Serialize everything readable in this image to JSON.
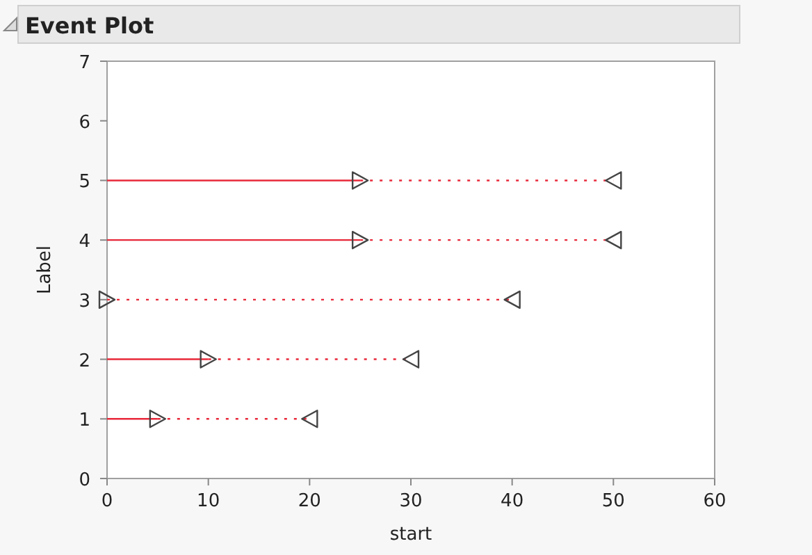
{
  "chart_data": {
    "type": "line",
    "title": "Event Plot",
    "xlabel": "start",
    "ylabel": "Label",
    "xlim": [
      0,
      60
    ],
    "xticks": [
      0,
      10,
      20,
      30,
      40,
      50,
      60
    ],
    "ylim": [
      0,
      7
    ],
    "yticks": [
      0,
      1,
      2,
      3,
      4,
      5,
      6,
      7
    ],
    "grid": false,
    "series": [
      {
        "color": "#e8283a",
        "x": [
          0,
          5
        ],
        "values": [
          1,
          1
        ],
        "line_style": "solid"
      },
      {
        "color": "#e8283a",
        "x": [
          5,
          20
        ],
        "values": [
          1,
          1
        ],
        "line_style": "dotted"
      },
      {
        "color": "#e8283a",
        "x": [
          0,
          10
        ],
        "values": [
          2,
          2
        ],
        "line_style": "solid"
      },
      {
        "color": "#e8283a",
        "x": [
          10,
          30
        ],
        "values": [
          2,
          2
        ],
        "line_style": "dotted"
      },
      {
        "color": "#e8283a",
        "x": [
          0,
          40
        ],
        "values": [
          3,
          3
        ],
        "line_style": "dotted"
      },
      {
        "color": "#e8283a",
        "x": [
          0,
          25
        ],
        "values": [
          4,
          4
        ],
        "line_style": "solid"
      },
      {
        "color": "#e8283a",
        "x": [
          25,
          50
        ],
        "values": [
          4,
          4
        ],
        "line_style": "dotted"
      },
      {
        "color": "#e8283a",
        "x": [
          0,
          25
        ],
        "values": [
          5,
          5
        ],
        "line_style": "solid"
      },
      {
        "color": "#e8283a",
        "x": [
          25,
          50
        ],
        "values": [
          5,
          5
        ],
        "line_style": "dotted"
      },
      {
        "type": "scatter",
        "color": "#444444",
        "x": [
          5,
          10,
          0,
          25,
          25
        ],
        "values": [
          1,
          2,
          3,
          4,
          5
        ],
        "marker": "triangle"
      },
      {
        "type": "scatter",
        "color": "#444444",
        "x": [
          20,
          30,
          40,
          50,
          50
        ],
        "values": [
          1,
          2,
          3,
          4,
          5
        ],
        "marker": "triangle"
      }
    ]
  }
}
